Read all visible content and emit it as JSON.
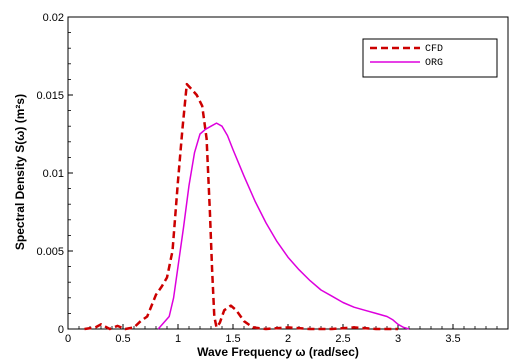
{
  "chart_data": {
    "type": "line",
    "xlabel": "Wave Frequency ω (rad/sec)",
    "ylabel": "Spectral Density S(ω) (m²s)",
    "xlim": [
      0,
      4
    ],
    "ylim": [
      0,
      0.02
    ],
    "x_ticks": [
      0,
      0.5,
      1,
      1.5,
      2,
      2.5,
      3,
      3.5
    ],
    "x_tick_labels": [
      "0",
      "0.5",
      "1",
      "1.5",
      "2",
      "2.5",
      "3",
      "3.5"
    ],
    "y_ticks": [
      0,
      0.005,
      0.01,
      0.015,
      0.02
    ],
    "y_tick_labels": [
      "0",
      "0.005",
      "0.01",
      "0.015",
      "0.02"
    ],
    "grid": false,
    "legend_position": "top-right",
    "series": [
      {
        "name": "CFD",
        "color": "#cc0000",
        "style": "dashed",
        "x": [
          0.15,
          0.25,
          0.3,
          0.38,
          0.45,
          0.52,
          0.6,
          0.66,
          0.72,
          0.8,
          0.85,
          0.9,
          0.95,
          1.0,
          1.04,
          1.08,
          1.12,
          1.17,
          1.22,
          1.26,
          1.29,
          1.31,
          1.33,
          1.35,
          1.38,
          1.42,
          1.48,
          1.53,
          1.6,
          1.68,
          1.8,
          2.0,
          2.2,
          2.4,
          2.6,
          2.8,
          3.0
        ],
        "y": [
          0.0,
          0.0001,
          0.0003,
          0.0,
          0.0002,
          0.0,
          0.0001,
          0.0005,
          0.0008,
          0.0022,
          0.0027,
          0.0033,
          0.005,
          0.0095,
          0.0128,
          0.0157,
          0.0154,
          0.015,
          0.0143,
          0.0122,
          0.0075,
          0.0038,
          0.0008,
          0.0001,
          0.0004,
          0.0012,
          0.0015,
          0.0012,
          0.0005,
          0.0001,
          0.0,
          0.0001,
          0.0,
          0.0,
          0.0001,
          0.0,
          0.0
        ]
      },
      {
        "name": "ORG",
        "color": "#dd00dd",
        "style": "solid",
        "x": [
          0.82,
          0.92,
          0.96,
          1.0,
          1.05,
          1.1,
          1.15,
          1.2,
          1.25,
          1.3,
          1.35,
          1.4,
          1.45,
          1.5,
          1.6,
          1.7,
          1.8,
          1.9,
          2.0,
          2.1,
          2.2,
          2.3,
          2.4,
          2.5,
          2.6,
          2.7,
          2.8,
          2.9,
          2.95,
          3.0,
          3.05,
          3.1
        ],
        "y": [
          0.0,
          0.0008,
          0.002,
          0.004,
          0.0065,
          0.0092,
          0.0113,
          0.0125,
          0.0128,
          0.013,
          0.0132,
          0.013,
          0.0124,
          0.0115,
          0.0098,
          0.0082,
          0.0068,
          0.0056,
          0.0046,
          0.0038,
          0.0031,
          0.0025,
          0.0021,
          0.0017,
          0.0014,
          0.0012,
          0.001,
          0.0008,
          0.0006,
          0.0003,
          0.0001,
          0.0
        ]
      }
    ]
  }
}
